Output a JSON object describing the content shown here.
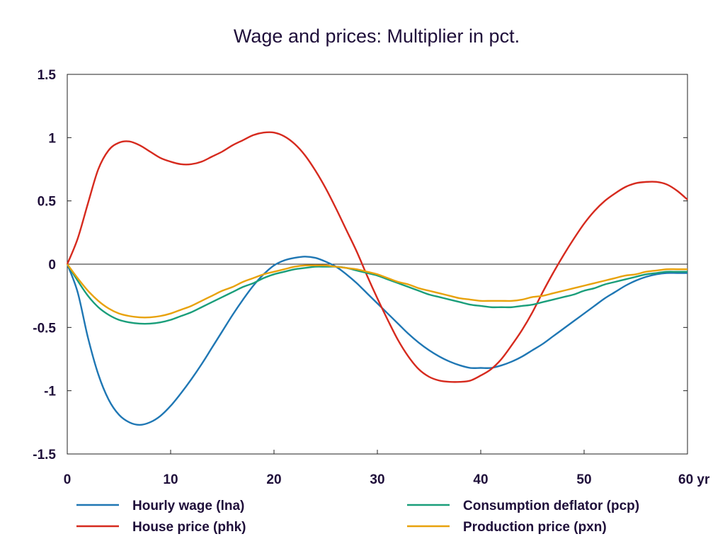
{
  "chart_data": {
    "type": "line",
    "title": "Wage and prices: Multiplier in pct.",
    "x_unit_label": "yr",
    "xlim": [
      0,
      60
    ],
    "ylim": [
      -1.5,
      1.5
    ],
    "x_ticks": [
      0,
      10,
      20,
      30,
      40,
      50,
      60
    ],
    "x_tick_labels": [
      "0",
      "10",
      "20",
      "30",
      "40",
      "50",
      "60 yr"
    ],
    "y_ticks": [
      1.5,
      1,
      0.5,
      0,
      -0.5,
      -1,
      -1.5
    ],
    "y_tick_labels": [
      "1.5",
      "1",
      "0.5",
      "0",
      "-0.5",
      "-1",
      "-1.5"
    ],
    "zero_line": true,
    "grid": false,
    "legend_position": "bottom",
    "x": [
      0,
      1,
      2,
      3,
      4,
      5,
      6,
      7,
      8,
      9,
      10,
      11,
      12,
      13,
      14,
      15,
      16,
      17,
      18,
      19,
      20,
      21,
      22,
      23,
      24,
      25,
      26,
      27,
      28,
      29,
      30,
      31,
      32,
      33,
      34,
      35,
      36,
      37,
      38,
      39,
      40,
      41,
      42,
      43,
      44,
      45,
      46,
      47,
      48,
      49,
      50,
      51,
      52,
      53,
      54,
      55,
      56,
      57,
      58,
      59,
      60
    ],
    "series": [
      {
        "name": "Hourly wage (lna)",
        "color": "#1f77b4",
        "values": [
          0,
          -0.22,
          -0.58,
          -0.87,
          -1.07,
          -1.19,
          -1.25,
          -1.27,
          -1.25,
          -1.2,
          -1.12,
          -1.02,
          -0.91,
          -0.79,
          -0.66,
          -0.53,
          -0.4,
          -0.28,
          -0.17,
          -0.08,
          -0.01,
          0.03,
          0.05,
          0.06,
          0.05,
          0.02,
          -0.02,
          -0.08,
          -0.15,
          -0.23,
          -0.31,
          -0.39,
          -0.47,
          -0.55,
          -0.62,
          -0.68,
          -0.73,
          -0.77,
          -0.8,
          -0.82,
          -0.82,
          -0.82,
          -0.8,
          -0.77,
          -0.73,
          -0.68,
          -0.63,
          -0.57,
          -0.51,
          -0.45,
          -0.39,
          -0.33,
          -0.27,
          -0.22,
          -0.17,
          -0.13,
          -0.1,
          -0.08,
          -0.07,
          -0.07,
          -0.07
        ]
      },
      {
        "name": "House price (phk)",
        "color": "#d62a1e",
        "values": [
          0,
          0.2,
          0.48,
          0.75,
          0.9,
          0.96,
          0.97,
          0.94,
          0.89,
          0.84,
          0.81,
          0.79,
          0.79,
          0.81,
          0.85,
          0.89,
          0.94,
          0.98,
          1.02,
          1.04,
          1.04,
          1.01,
          0.95,
          0.86,
          0.74,
          0.6,
          0.44,
          0.27,
          0.1,
          -0.09,
          -0.27,
          -0.44,
          -0.6,
          -0.73,
          -0.83,
          -0.89,
          -0.92,
          -0.93,
          -0.93,
          -0.92,
          -0.88,
          -0.83,
          -0.75,
          -0.64,
          -0.52,
          -0.38,
          -0.22,
          -0.07,
          0.07,
          0.2,
          0.32,
          0.42,
          0.5,
          0.56,
          0.61,
          0.64,
          0.65,
          0.65,
          0.63,
          0.58,
          0.51
        ]
      },
      {
        "name": "Consumption deflator (pcp)",
        "color": "#1a9e7a",
        "values": [
          0,
          -0.13,
          -0.25,
          -0.34,
          -0.4,
          -0.44,
          -0.46,
          -0.47,
          -0.47,
          -0.46,
          -0.44,
          -0.41,
          -0.38,
          -0.34,
          -0.3,
          -0.26,
          -0.22,
          -0.18,
          -0.15,
          -0.11,
          -0.08,
          -0.06,
          -0.04,
          -0.03,
          -0.02,
          -0.02,
          -0.02,
          -0.03,
          -0.05,
          -0.07,
          -0.09,
          -0.12,
          -0.15,
          -0.18,
          -0.21,
          -0.24,
          -0.26,
          -0.28,
          -0.3,
          -0.32,
          -0.33,
          -0.34,
          -0.34,
          -0.34,
          -0.33,
          -0.32,
          -0.3,
          -0.28,
          -0.26,
          -0.24,
          -0.21,
          -0.19,
          -0.16,
          -0.14,
          -0.12,
          -0.1,
          -0.08,
          -0.07,
          -0.06,
          -0.06,
          -0.06
        ]
      },
      {
        "name": "Production price (pxn)",
        "color": "#e8a20c",
        "values": [
          0,
          -0.11,
          -0.21,
          -0.29,
          -0.35,
          -0.39,
          -0.41,
          -0.42,
          -0.42,
          -0.41,
          -0.39,
          -0.36,
          -0.33,
          -0.29,
          -0.25,
          -0.21,
          -0.18,
          -0.14,
          -0.11,
          -0.08,
          -0.06,
          -0.04,
          -0.02,
          -0.01,
          -0.01,
          -0.01,
          -0.02,
          -0.03,
          -0.04,
          -0.06,
          -0.08,
          -0.11,
          -0.14,
          -0.16,
          -0.19,
          -0.21,
          -0.23,
          -0.25,
          -0.27,
          -0.28,
          -0.29,
          -0.29,
          -0.29,
          -0.29,
          -0.28,
          -0.26,
          -0.25,
          -0.23,
          -0.21,
          -0.19,
          -0.17,
          -0.15,
          -0.13,
          -0.11,
          -0.09,
          -0.08,
          -0.06,
          -0.05,
          -0.04,
          -0.04,
          -0.04
        ]
      }
    ]
  }
}
